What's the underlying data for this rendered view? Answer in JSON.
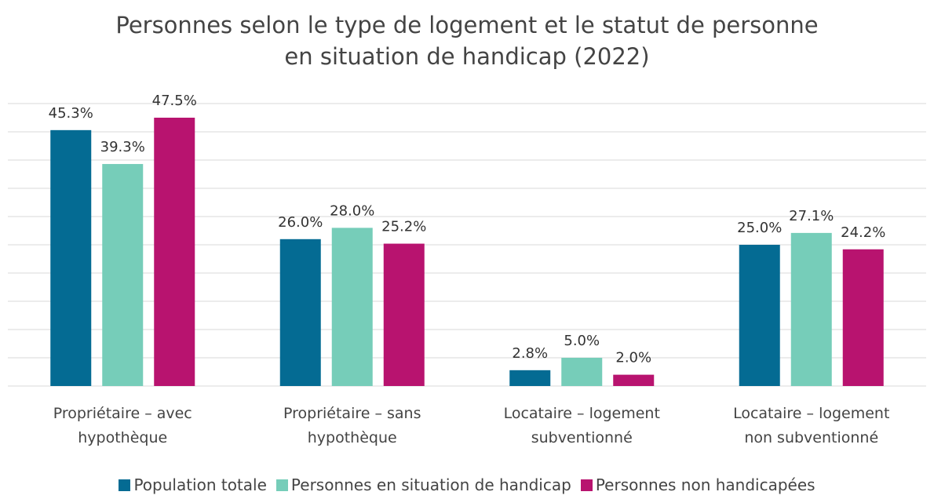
{
  "chart_data": {
    "type": "bar",
    "title": "Personnes selon le type de logement et le statut de personne en situation de handicap (2022)",
    "categories": [
      "Propriétaire – avec hypothèque",
      "Propriétaire – sans hypothèque",
      "Locataire – logement subventionné",
      "Locataire – logement non subventionné"
    ],
    "series": [
      {
        "name": "Population totale",
        "color": "#046b93",
        "values": [
          45.3,
          26.0,
          2.8,
          25.0
        ],
        "value_labels": [
          "45.3%",
          "26.0%",
          "2.8%",
          "25.0%"
        ]
      },
      {
        "name": "Personnes en situation de handicap",
        "color": "#76cdb9",
        "values": [
          39.3,
          28.0,
          5.0,
          27.1
        ],
        "value_labels": [
          "39.3%",
          "28.0%",
          "5.0%",
          "27.1%"
        ]
      },
      {
        "name": "Personnes non handicapées",
        "color": "#b8136f",
        "values": [
          47.5,
          25.2,
          2.0,
          24.2
        ],
        "value_labels": [
          "47.5%",
          "25.2%",
          "2.0%",
          "24.2%"
        ]
      }
    ],
    "ylim": [
      0,
      50
    ],
    "yticks": [
      0,
      5,
      10,
      15,
      20,
      25,
      30,
      35,
      40,
      45,
      50
    ],
    "grid": true,
    "legend": "bottom"
  }
}
